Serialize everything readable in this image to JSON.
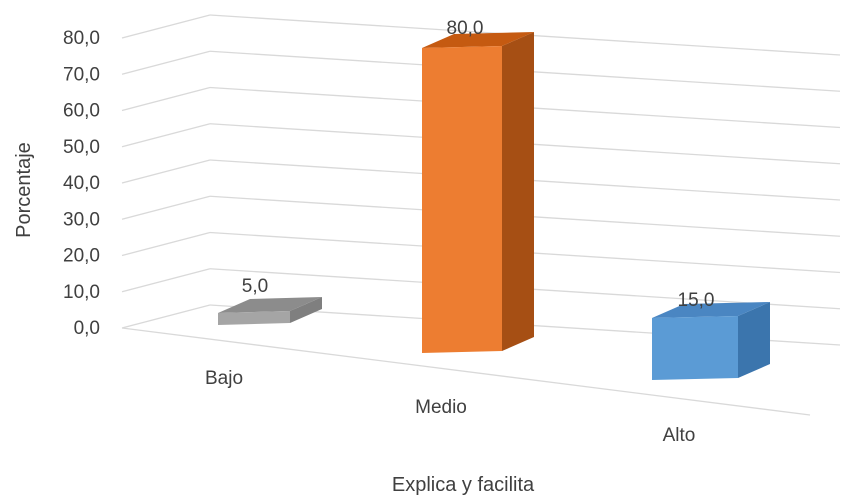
{
  "chart_data": {
    "type": "bar",
    "title": "",
    "xlabel": "Explica y facilita",
    "ylabel": "Porcentaje",
    "categories": [
      "Bajo",
      "Medio",
      "Alto"
    ],
    "values": [
      5.0,
      80.0,
      15.0
    ],
    "value_labels": [
      "5,0",
      "80,0",
      "15,0"
    ],
    "ylim": [
      0,
      80
    ],
    "yticks": [
      0,
      10,
      20,
      30,
      40,
      50,
      60,
      70,
      80
    ],
    "ytick_labels": [
      "0,0",
      "10,0",
      "20,0",
      "30,0",
      "40,0",
      "50,0",
      "60,0",
      "70,0",
      "80,0"
    ],
    "grid": true,
    "legend": "none",
    "style": "3d-column",
    "colors": {
      "bars": [
        {
          "front": "#a5a5a5",
          "side": "#7f7f7f",
          "top": "#8c8c8c"
        },
        {
          "front": "#ed7d31",
          "side": "#a64f14",
          "top": "#c55a11"
        },
        {
          "front": "#5b9bd5",
          "side": "#3b75ad",
          "top": "#4a86c2"
        }
      ],
      "grid": "#d9d9d9",
      "text": "#404040"
    }
  }
}
